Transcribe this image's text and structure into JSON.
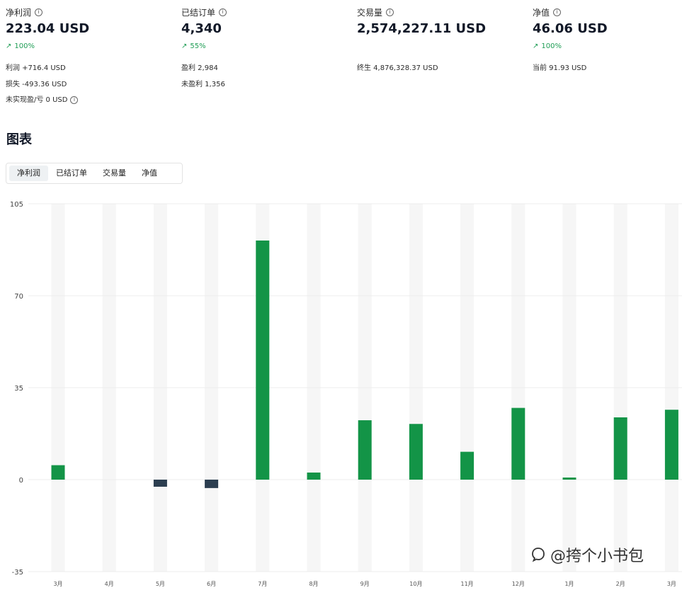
{
  "stats": [
    {
      "label": "净利润",
      "value": "223.04 USD",
      "change": "100%",
      "details": [
        "利润 +716.4 USD",
        "损失 -493.36 USD",
        "未实现盈/亏 0 USD"
      ]
    },
    {
      "label": "已结订单",
      "value": "4,340",
      "change": "55%",
      "details": [
        "盈利 2,984",
        "未盈利 1,356"
      ]
    },
    {
      "label": "交易量",
      "value": "2,574,227.11 USD",
      "change": "",
      "details": [
        "终生 4,876,328.37 USD"
      ]
    },
    {
      "label": "净值",
      "value": "46.06 USD",
      "change": "100%",
      "details": [
        "当前 91.93 USD"
      ]
    }
  ],
  "section_title": "图表",
  "tabs": [
    "净利润",
    "已结订单",
    "交易量",
    "净值"
  ],
  "active_tab": "净利润",
  "watermark": "@挎个小书包",
  "colors": {
    "positive": "#139447",
    "negative": "#2c3e50",
    "change_up": "#1f9d55",
    "band": "#f6f6f6",
    "grid": "#ececec"
  },
  "icons": {
    "info": "info-icon",
    "trend_up": "arrow-up-right-icon",
    "watermark": "zhihu-icon"
  },
  "chart_data": {
    "type": "bar",
    "categories": [
      "3月",
      "4月",
      "5月",
      "6月",
      "7月",
      "8月",
      "9月",
      "10月",
      "11月",
      "12月",
      "1月",
      "2月",
      "3月"
    ],
    "values": [
      5.5,
      0,
      -2.7,
      -3.2,
      91,
      2.7,
      22.6,
      21.2,
      10.6,
      27.3,
      0.8,
      23.7,
      26.6
    ],
    "ylim": [
      -35,
      105
    ],
    "yticks": [
      105,
      70,
      35,
      0,
      -35
    ],
    "grid": true,
    "title": "",
    "xlabel": "",
    "ylabel": ""
  }
}
